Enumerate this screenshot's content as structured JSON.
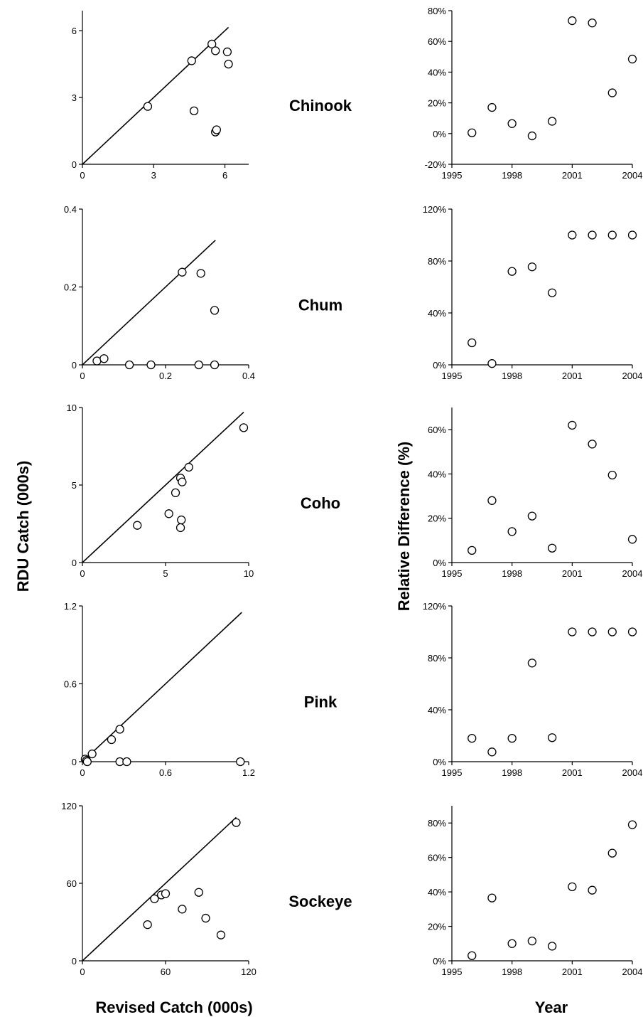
{
  "figure": {
    "left_ylabel": "RDU Catch (000s)",
    "left_xlabel": "Revised Catch (000s)",
    "right_ylabel": "Relative Difference (%)",
    "right_xlabel": "Year"
  },
  "chart_data": [
    {
      "type": "scatter",
      "species": "Chinook",
      "panel": "rdu-vs-revised",
      "xlim": [
        0,
        7
      ],
      "ylim": [
        0,
        6.9
      ],
      "xticks": [
        "0",
        "3",
        "6"
      ],
      "yticks": [
        "0",
        "3",
        "6"
      ],
      "xtick_values": [
        0,
        3,
        6
      ],
      "ytick_values": [
        0,
        3,
        6
      ],
      "reference_line": {
        "x1": 0,
        "y1": 0,
        "x2": 6.15,
        "y2": 6.15
      },
      "points": [
        [
          2.75,
          2.6
        ],
        [
          4.6,
          4.65
        ],
        [
          4.7,
          2.4
        ],
        [
          5.45,
          5.4
        ],
        [
          5.6,
          5.1
        ],
        [
          6.1,
          5.05
        ],
        [
          6.15,
          4.5
        ],
        [
          5.6,
          1.45
        ],
        [
          5.65,
          1.55
        ]
      ]
    },
    {
      "type": "scatter",
      "species": "Chinook",
      "panel": "relative-difference",
      "xlim": [
        1995,
        2004
      ],
      "ylim": [
        -0.2,
        0.8
      ],
      "xticks": [
        "1995",
        "1998",
        "2001",
        "2004"
      ],
      "yticks": [
        "-20%",
        "0%",
        "20%",
        "40%",
        "60%",
        "80%"
      ],
      "xtick_values": [
        1995,
        1998,
        2001,
        2004
      ],
      "ytick_values": [
        -0.2,
        0,
        0.2,
        0.4,
        0.6,
        0.8
      ],
      "points": [
        [
          1996,
          0.005
        ],
        [
          1997,
          0.17
        ],
        [
          1998,
          0.065
        ],
        [
          1999,
          -0.015
        ],
        [
          2000,
          0.08
        ],
        [
          2001,
          0.735
        ],
        [
          2002,
          0.72
        ],
        [
          2003,
          0.265
        ],
        [
          2004,
          0.485
        ]
      ]
    },
    {
      "type": "scatter",
      "species": "Chum",
      "panel": "rdu-vs-revised",
      "xlim": [
        0,
        0.4
      ],
      "ylim": [
        0,
        0.4
      ],
      "xticks": [
        "0",
        "0.2",
        "0.4"
      ],
      "yticks": [
        "0",
        "0.2",
        "0.4"
      ],
      "xtick_values": [
        0,
        0.2,
        0.4
      ],
      "ytick_values": [
        0,
        0.2,
        0.4
      ],
      "reference_line": {
        "x1": 0,
        "y1": 0,
        "x2": 0.32,
        "y2": 0.32
      },
      "points": [
        [
          0.035,
          0.01
        ],
        [
          0.052,
          0.016
        ],
        [
          0.113,
          0.0
        ],
        [
          0.165,
          0.0
        ],
        [
          0.24,
          0.238
        ],
        [
          0.28,
          0.0
        ],
        [
          0.285,
          0.235
        ],
        [
          0.318,
          0.14
        ],
        [
          0.318,
          0.0
        ]
      ]
    },
    {
      "type": "scatter",
      "species": "Chum",
      "panel": "relative-difference",
      "xlim": [
        1995,
        2004
      ],
      "ylim": [
        0,
        1.2
      ],
      "xticks": [
        "1995",
        "1998",
        "2001",
        "2004"
      ],
      "yticks": [
        "0%",
        "40%",
        "80%",
        "120%"
      ],
      "xtick_values": [
        1995,
        1998,
        2001,
        2004
      ],
      "ytick_values": [
        0,
        0.4,
        0.8,
        1.2
      ],
      "points": [
        [
          1996,
          0.17
        ],
        [
          1997,
          0.01
        ],
        [
          1998,
          0.72
        ],
        [
          1999,
          0.755
        ],
        [
          2000,
          0.555
        ],
        [
          2001,
          1.0
        ],
        [
          2002,
          1.0
        ],
        [
          2003,
          1.0
        ],
        [
          2004,
          1.0
        ]
      ]
    },
    {
      "type": "scatter",
      "species": "Coho",
      "panel": "rdu-vs-revised",
      "xlim": [
        0,
        10
      ],
      "ylim": [
        0,
        10
      ],
      "xticks": [
        "0",
        "5",
        "10"
      ],
      "yticks": [
        "0",
        "5",
        "10"
      ],
      "xtick_values": [
        0,
        5,
        10
      ],
      "ytick_values": [
        0,
        5,
        10
      ],
      "reference_line": {
        "x1": 0,
        "y1": 0,
        "x2": 9.7,
        "y2": 9.7
      },
      "points": [
        [
          3.3,
          2.4
        ],
        [
          5.2,
          3.15
        ],
        [
          5.6,
          4.5
        ],
        [
          5.9,
          5.45
        ],
        [
          6.0,
          5.2
        ],
        [
          6.4,
          6.15
        ],
        [
          5.95,
          2.75
        ],
        [
          5.9,
          2.25
        ],
        [
          9.7,
          8.7
        ]
      ]
    },
    {
      "type": "scatter",
      "species": "Coho",
      "panel": "relative-difference",
      "xlim": [
        1995,
        2004
      ],
      "ylim": [
        0,
        0.7
      ],
      "xticks": [
        "1995",
        "1998",
        "2001",
        "2004"
      ],
      "yticks": [
        "0%",
        "20%",
        "40%",
        "60%"
      ],
      "xtick_values": [
        1995,
        1998,
        2001,
        2004
      ],
      "ytick_values": [
        0,
        0.2,
        0.4,
        0.6
      ],
      "points": [
        [
          1996,
          0.055
        ],
        [
          1997,
          0.28
        ],
        [
          1998,
          0.14
        ],
        [
          1999,
          0.21
        ],
        [
          2000,
          0.065
        ],
        [
          2001,
          0.62
        ],
        [
          2002,
          0.535
        ],
        [
          2003,
          0.395
        ],
        [
          2004,
          0.105
        ]
      ]
    },
    {
      "type": "scatter",
      "species": "Pink",
      "panel": "rdu-vs-revised",
      "xlim": [
        0,
        1.2
      ],
      "ylim": [
        0,
        1.2
      ],
      "xticks": [
        "0",
        "0.6",
        "1.2"
      ],
      "yticks": [
        "0",
        "0.6",
        "1.2"
      ],
      "xtick_values": [
        0,
        0.6,
        1.2
      ],
      "ytick_values": [
        0,
        0.6,
        1.2
      ],
      "reference_line": {
        "x1": 0,
        "y1": 0,
        "x2": 1.15,
        "y2": 1.15
      },
      "points": [
        [
          0.02,
          0.02
        ],
        [
          0.03,
          0.01
        ],
        [
          0.035,
          0.0
        ],
        [
          0.07,
          0.06
        ],
        [
          0.21,
          0.17
        ],
        [
          0.27,
          0.25
        ],
        [
          0.27,
          0.0
        ],
        [
          0.32,
          0.0
        ],
        [
          1.14,
          0.0
        ]
      ]
    },
    {
      "type": "scatter",
      "species": "Pink",
      "panel": "relative-difference",
      "xlim": [
        1995,
        2004
      ],
      "ylim": [
        0,
        1.2
      ],
      "xticks": [
        "1995",
        "1998",
        "2001",
        "2004"
      ],
      "yticks": [
        "0%",
        "40%",
        "80%",
        "120%"
      ],
      "xtick_values": [
        1995,
        1998,
        2001,
        2004
      ],
      "ytick_values": [
        0,
        0.4,
        0.8,
        1.2
      ],
      "points": [
        [
          1996,
          0.18
        ],
        [
          1997,
          0.075
        ],
        [
          1998,
          0.18
        ],
        [
          1999,
          0.76
        ],
        [
          2000,
          0.185
        ],
        [
          2001,
          1.0
        ],
        [
          2002,
          1.0
        ],
        [
          2003,
          1.0
        ],
        [
          2004,
          1.0
        ]
      ]
    },
    {
      "type": "scatter",
      "species": "Sockeye",
      "panel": "rdu-vs-revised",
      "xlim": [
        0,
        120
      ],
      "ylim": [
        0,
        120
      ],
      "xticks": [
        "0",
        "60",
        "120"
      ],
      "yticks": [
        "0",
        "60",
        "120"
      ],
      "xtick_values": [
        0,
        60,
        120
      ],
      "ytick_values": [
        0,
        60,
        120
      ],
      "reference_line": {
        "x1": 0,
        "y1": 0,
        "x2": 111,
        "y2": 111
      },
      "points": [
        [
          47,
          28
        ],
        [
          52,
          48
        ],
        [
          57,
          51
        ],
        [
          60,
          52
        ],
        [
          72,
          40
        ],
        [
          84,
          53
        ],
        [
          89,
          33
        ],
        [
          100,
          20
        ],
        [
          111,
          107
        ]
      ]
    },
    {
      "type": "scatter",
      "species": "Sockeye",
      "panel": "relative-difference",
      "xlim": [
        1995,
        2004
      ],
      "ylim": [
        0,
        0.9
      ],
      "xticks": [
        "1995",
        "1998",
        "2001",
        "2004"
      ],
      "yticks": [
        "0%",
        "20%",
        "40%",
        "60%",
        "80%"
      ],
      "xtick_values": [
        1995,
        1998,
        2001,
        2004
      ],
      "ytick_values": [
        0,
        0.2,
        0.4,
        0.6,
        0.8
      ],
      "points": [
        [
          1996,
          0.03
        ],
        [
          1997,
          0.365
        ],
        [
          1998,
          0.1
        ],
        [
          1999,
          0.115
        ],
        [
          2000,
          0.085
        ],
        [
          2001,
          0.43
        ],
        [
          2002,
          0.41
        ],
        [
          2003,
          0.625
        ],
        [
          2004,
          0.79
        ]
      ]
    }
  ]
}
